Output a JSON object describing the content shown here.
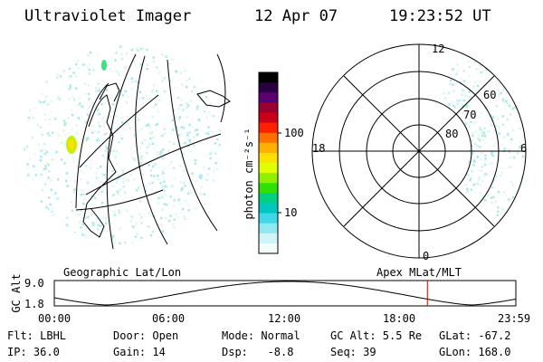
{
  "header": {
    "instrument": "Ultraviolet Imager",
    "date": "12 Apr 07",
    "time": "19:23:52 UT"
  },
  "colorbar": {
    "unit_label": "photon cm⁻²s⁻¹",
    "ticks": [
      "100",
      "10"
    ],
    "colors": [
      "#000000",
      "#2a0040",
      "#5a0070",
      "#9a0030",
      "#cc0018",
      "#ff2000",
      "#ff7000",
      "#ffb000",
      "#ffe000",
      "#e0ff00",
      "#90f000",
      "#30e000",
      "#00d080",
      "#00c8c0",
      "#40d8e8",
      "#90e8f0",
      "#d0f4f8",
      "#f4fcfc"
    ]
  },
  "polar_plot": {
    "mlt_labels": {
      "top": "12",
      "left": "18",
      "right": "6",
      "bottom": "0"
    },
    "lat_labels": [
      "60",
      "70",
      "80"
    ]
  },
  "section_labels": {
    "geographic": "Geographic Lat/Lon",
    "apex": "Apex MLat/MLT"
  },
  "altitude_plot": {
    "axis_label": "GC Alt",
    "y_ticks": [
      "9.0",
      "1.8"
    ],
    "x_ticks": [
      "00:00",
      "06:00",
      "12:00",
      "18:00",
      "23:59"
    ],
    "marker_color": "#cc0000",
    "marker_hour": 19.4
  },
  "footer": {
    "filter": "Flt: LBHL",
    "ip": "IP: 36.0",
    "door": "Door: Open",
    "gain": "Gain: 14",
    "mode": "Mode: Normal",
    "dsp": "Dsp:   -8.8",
    "gc_alt": "GC Alt: 5.5 Re",
    "seq": "Seq: 39",
    "glat": "GLat: -67.2",
    "glon": "GLon: 168.0"
  }
}
